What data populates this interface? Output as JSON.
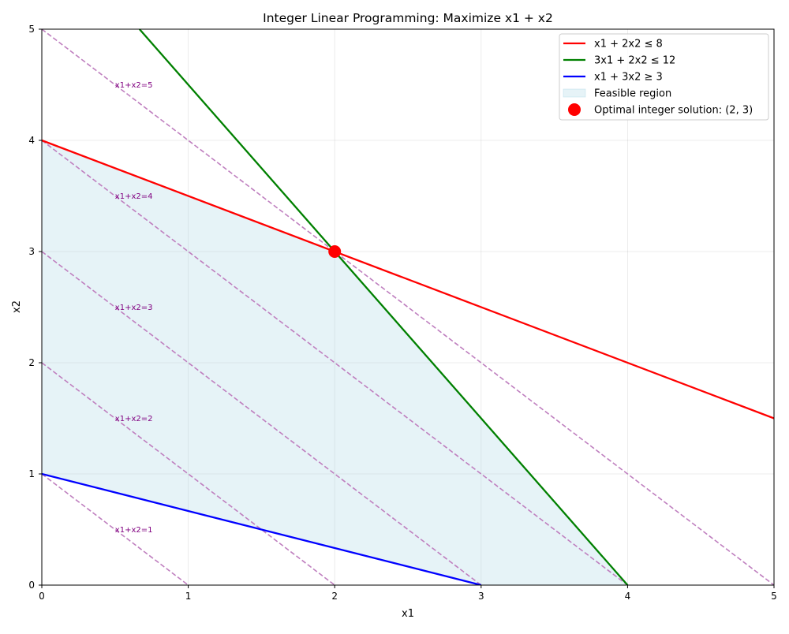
{
  "chart_data": {
    "type": "line",
    "title": "Integer Linear Programming: Maximize x1 + x2",
    "xlabel": "x1",
    "ylabel": "x2",
    "xlim": [
      0,
      5
    ],
    "ylim": [
      0,
      5
    ],
    "xticks": [
      "0",
      "1",
      "2",
      "3",
      "4",
      "5"
    ],
    "yticks": [
      "0",
      "1",
      "2",
      "3",
      "4",
      "5"
    ],
    "grid": true,
    "legend_position": "top-right",
    "colors": {
      "constraint1": "#ff0000",
      "constraint2": "#008000",
      "constraint3": "#0000ff",
      "feasible_fill": "#add8e6",
      "objective_line": "#bf7fbf",
      "objective_label": "#800080",
      "optimal_marker": "#ff0000"
    },
    "series": [
      {
        "name": "x1 + 2x2 ≤ 8",
        "x": [
          0,
          5
        ],
        "y": [
          4,
          1.5
        ]
      },
      {
        "name": "3x1 + 2x2 ≤ 12",
        "x": [
          0.667,
          4
        ],
        "y": [
          5,
          0
        ]
      },
      {
        "name": "x1 + 3x2 ≥ 3",
        "x": [
          0,
          3
        ],
        "y": [
          1,
          0
        ]
      }
    ],
    "feasible_region": {
      "name": "Feasible region",
      "x": [
        0,
        2,
        4,
        3,
        0
      ],
      "y": [
        4,
        3,
        0,
        0,
        1
      ]
    },
    "optimal_point": {
      "name": "Optimal integer solution: (2, 3)",
      "x": 2,
      "y": 3
    },
    "objective_lines": [
      {
        "label": "x1+x2=1",
        "value": 1,
        "label_at": [
          0.5,
          0.5
        ]
      },
      {
        "label": "x1+x2=2",
        "value": 2,
        "label_at": [
          0.5,
          1.5
        ]
      },
      {
        "label": "x1+x2=3",
        "value": 3,
        "label_at": [
          0.5,
          2.5
        ]
      },
      {
        "label": "x1+x2=4",
        "value": 4,
        "label_at": [
          0.5,
          3.5
        ]
      },
      {
        "label": "x1+x2=5",
        "value": 5,
        "label_at": [
          0.5,
          4.5
        ]
      }
    ]
  }
}
